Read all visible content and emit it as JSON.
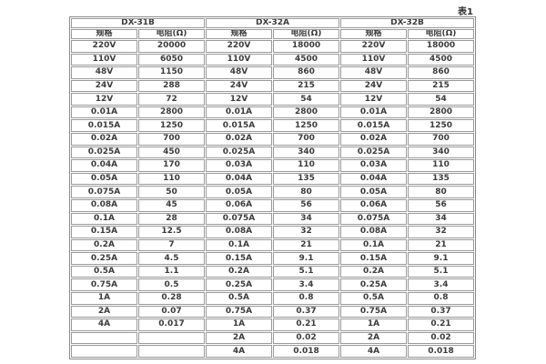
{
  "caption": "表1",
  "colors": {
    "border": "#9a9a9a",
    "text": "#3b3b3b",
    "background": "#ffffff"
  },
  "table": {
    "groups": [
      {
        "name": "DX-31B"
      },
      {
        "name": "DX-32A"
      },
      {
        "name": "DX-32B"
      }
    ],
    "col_headers": {
      "spec": "规格",
      "resistance": "电阻(Ω)"
    },
    "rows": [
      [
        "220V",
        "20000",
        "220V",
        "18000",
        "220V",
        "18000"
      ],
      [
        "110V",
        "6050",
        "110V",
        "4500",
        "110V",
        "4500"
      ],
      [
        "48V",
        "1150",
        "48V",
        "860",
        "48V",
        "860"
      ],
      [
        "24V",
        "288",
        "24V",
        "215",
        "24V",
        "215"
      ],
      [
        "12V",
        "72",
        "12V",
        "54",
        "12V",
        "54"
      ],
      [
        "0.01A",
        "2800",
        "0.01A",
        "2800",
        "0.01A",
        "2800"
      ],
      [
        "0.015A",
        "1250",
        "0.015A",
        "1250",
        "0.015A",
        "1250"
      ],
      [
        "0.02A",
        "700",
        "0.02A",
        "700",
        "0.02A",
        "700"
      ],
      [
        "0.025A",
        "450",
        "0.025A",
        "340",
        "0.025A",
        "340"
      ],
      [
        "0.04A",
        "170",
        "0.03A",
        "110",
        "0.03A",
        "110"
      ],
      [
        "0.05A",
        "110",
        "0.04A",
        "135",
        "0.04A",
        "135"
      ],
      [
        "0.075A",
        "50",
        "0.05A",
        "80",
        "0.05A",
        "80"
      ],
      [
        "0.08A",
        "45",
        "0.06A",
        "56",
        "0.06A",
        "56"
      ],
      [
        "0.1A",
        "28",
        "0.075A",
        "34",
        "0.075A",
        "34"
      ],
      [
        "0.15A",
        "12.5",
        "0.08A",
        "32",
        "0.08A",
        "32"
      ],
      [
        "0.2A",
        "7",
        "0.1A",
        "21",
        "0.1A",
        "21"
      ],
      [
        "0.25A",
        "4.5",
        "0.15A",
        "9.1",
        "0.15A",
        "9.1"
      ],
      [
        "0.5A",
        "1.1",
        "0.2A",
        "5.1",
        "0.2A",
        "5.1"
      ],
      [
        "0.75A",
        "0.5",
        "0.25A",
        "3.4",
        "0.25A",
        "3.4"
      ],
      [
        "1A",
        "0.28",
        "0.5A",
        "0.8",
        "0.5A",
        "0.8"
      ],
      [
        "2A",
        "0.07",
        "0.75A",
        "0.37",
        "0.75A",
        "0.37"
      ],
      [
        "4A",
        "0.017",
        "1A",
        "0.21",
        "1A",
        "0.21"
      ],
      [
        "",
        "",
        "2A",
        "0.02",
        "2A",
        "0.02"
      ],
      [
        "",
        "",
        "4A",
        "0.018",
        "4A",
        "0.018"
      ]
    ]
  }
}
